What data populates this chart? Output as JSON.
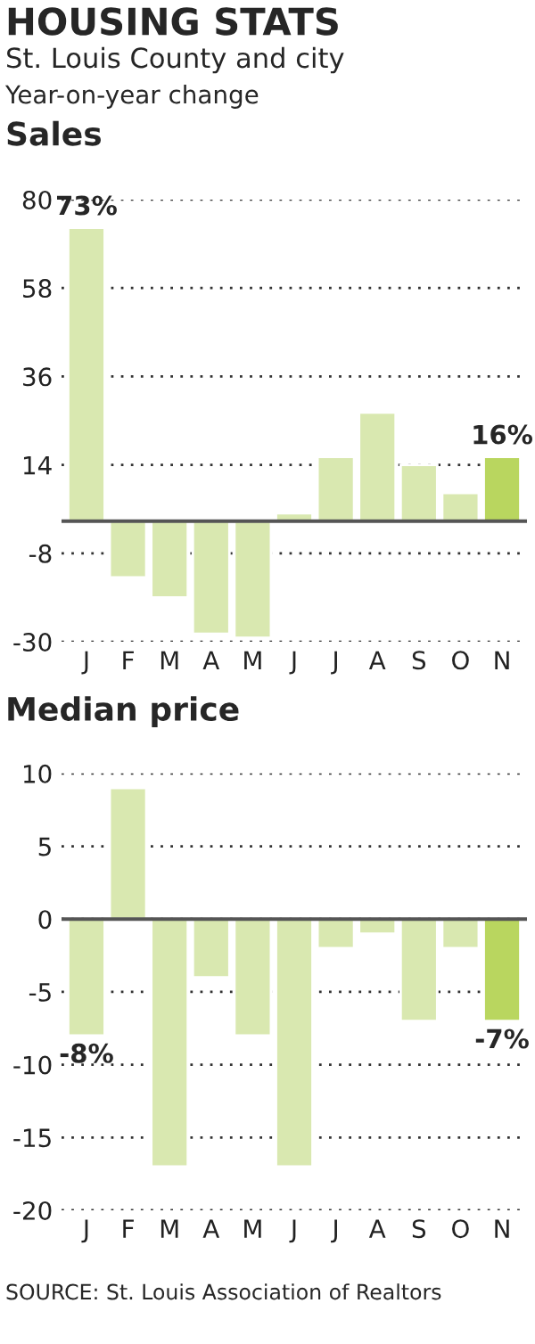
{
  "chart_data": [
    {
      "type": "bar",
      "title": "HOUSING STATS",
      "subtitle": "St. Louis County and city",
      "annotations": [
        "Year-on-year change",
        "Sales"
      ],
      "categories": [
        "J",
        "F",
        "M",
        "A",
        "M",
        "J",
        "J",
        "A",
        "S",
        "O",
        "N"
      ],
      "values": [
        73,
        -14,
        -19,
        -28,
        -29,
        2,
        16,
        27,
        14,
        7,
        16
      ],
      "colors": [
        "#d9e8b0",
        "#d9e8b0",
        "#d9e8b0",
        "#d9e8b0",
        "#d9e8b0",
        "#d9e8b0",
        "#d9e8b0",
        "#d9e8b0",
        "#d9e8b0",
        "#d9e8b0",
        "#b9d65f"
      ],
      "value_labels": [
        "73%",
        null,
        null,
        null,
        null,
        null,
        null,
        null,
        null,
        null,
        "16%"
      ],
      "ylim": [
        -30,
        80
      ],
      "yticks": [
        -30,
        -8,
        14,
        36,
        58,
        80
      ],
      "grid": "y",
      "ref_lines": [
        {
          "axis": "y",
          "value": 0,
          "color": "#555555"
        }
      ]
    },
    {
      "type": "bar",
      "title": "Median price",
      "annotations": [
        "SOURCE: St. Louis Association of Realtors"
      ],
      "categories": [
        "J",
        "F",
        "M",
        "A",
        "M",
        "J",
        "J",
        "A",
        "S",
        "O",
        "N"
      ],
      "values": [
        -8,
        9,
        -17,
        -4,
        -8,
        -17,
        -2,
        -1,
        -7,
        -2,
        -7
      ],
      "colors": [
        "#d9e8b0",
        "#d9e8b0",
        "#d9e8b0",
        "#d9e8b0",
        "#d9e8b0",
        "#d9e8b0",
        "#d9e8b0",
        "#d9e8b0",
        "#d9e8b0",
        "#d9e8b0",
        "#b9d65f"
      ],
      "value_labels": [
        "-8%",
        null,
        null,
        null,
        null,
        null,
        null,
        null,
        null,
        null,
        "-7%"
      ],
      "ylim": [
        -20,
        10
      ],
      "yticks": [
        -20,
        -15,
        -10,
        -5,
        0,
        5,
        10
      ],
      "grid": "y",
      "ref_lines": [
        {
          "axis": "y",
          "value": 0,
          "color": "#555555"
        }
      ]
    }
  ]
}
